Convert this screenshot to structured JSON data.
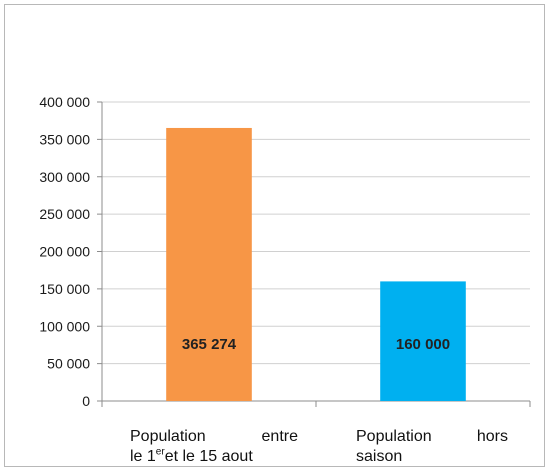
{
  "chart_data": {
    "type": "bar",
    "categories": [
      "Population entre le 1er et le 15 aout",
      "Population hors saison"
    ],
    "category_lines": [
      [
        [
          "Population",
          "entre"
        ],
        [
          "le 1",
          "er",
          " et le 15 aout"
        ]
      ],
      [
        [
          "Population",
          "hors"
        ],
        [
          "saison"
        ]
      ]
    ],
    "values": [
      365274,
      160000
    ],
    "value_labels": [
      "365 274",
      "160 000"
    ],
    "colors": [
      "#F79646",
      "#00B0F0"
    ],
    "yticks": [
      0,
      50000,
      100000,
      150000,
      200000,
      250000,
      300000,
      350000,
      400000
    ],
    "ytick_labels": [
      "0",
      "50 000",
      "100 000",
      "150 000",
      "200 000",
      "250 000",
      "300 000",
      "350 000",
      "400 000"
    ],
    "ylim": [
      0,
      400000
    ],
    "grid": true,
    "title": "",
    "xlabel": "",
    "ylabel": ""
  }
}
